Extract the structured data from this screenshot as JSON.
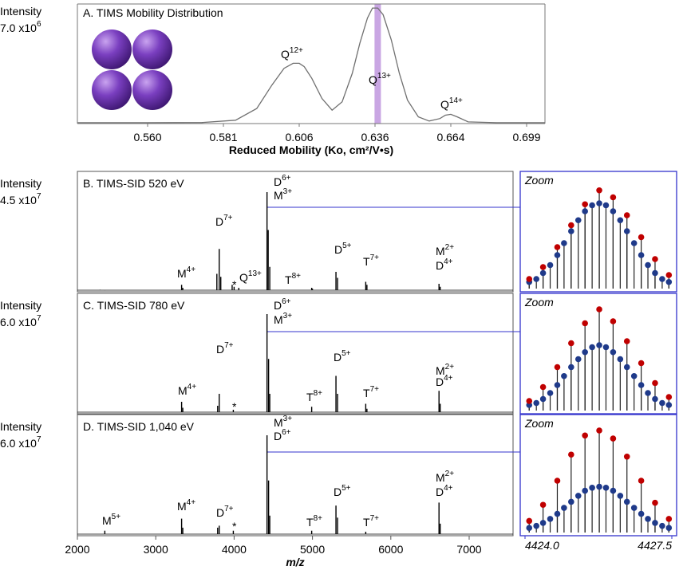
{
  "chart_data": [
    {
      "type": "line",
      "title": "A. TIMS Mobility Distribution",
      "ylabel": "Intensity",
      "ymax_label": {
        "text": "7.0 x10",
        "sup": "6"
      },
      "xlabel": "Reduced Mobility (Ko, cm²/V•s)",
      "color": "#707070",
      "highlight_x": 0.637,
      "highlight_color": "#c9a6e3",
      "x": [
        0.54,
        0.56,
        0.575,
        0.585,
        0.592,
        0.597,
        0.601,
        0.604,
        0.606,
        0.608,
        0.611,
        0.615,
        0.619,
        0.623,
        0.627,
        0.63,
        0.633,
        0.635,
        0.637,
        0.639,
        0.642,
        0.645,
        0.648,
        0.652,
        0.656,
        0.66,
        0.662,
        0.664,
        0.667,
        0.672,
        0.685,
        0.708
      ],
      "values": [
        50000,
        50000,
        60000,
        200000,
        900000,
        2300000,
        3300000,
        3600000,
        3600000,
        3400000,
        2700000,
        1500000,
        800000,
        1300000,
        3000000,
        4800000,
        6300000,
        6900000,
        6900000,
        6500000,
        5000000,
        3000000,
        1400000,
        400000,
        150000,
        300000,
        500000,
        550000,
        400000,
        100000,
        50000,
        50000
      ],
      "xlim": [
        0.54,
        0.708
      ],
      "xticks": [
        {
          "value": 0.56,
          "label": "0.560"
        },
        0.581,
        0.606,
        0.636,
        0.664,
        0.699
      ],
      "ylim": [
        0,
        7000000
      ],
      "annotations": [
        {
          "text": "Q",
          "sup": "12+",
          "color": "#7030a0"
        },
        {
          "text": "Q",
          "sup": "13+",
          "color": "#7030a0"
        },
        {
          "text": "Q",
          "sup": "14+",
          "color": "#7030a0"
        }
      ]
    },
    {
      "type": "stem",
      "title": "B. TIMS-SID 520 eV",
      "ylabel": "Intensity",
      "ymax_label": {
        "text": "4.5 x10",
        "sup": "7"
      },
      "color": "#000000",
      "xlim": [
        2000,
        7560
      ],
      "ylim": [
        0,
        45000000
      ],
      "x": [
        2290,
        2350,
        3330,
        3345,
        3780,
        3810,
        3830,
        3975,
        4000,
        4060,
        4420,
        4435,
        4455,
        4990,
        5000,
        5300,
        5320,
        5680,
        5695,
        6615,
        6630
      ],
      "values": [
        900000,
        675000,
        3150000,
        1800000,
        8100000,
        19350000,
        6750000,
        3150000,
        2250000,
        1800000,
        45000000,
        27900000,
        11250000,
        1800000,
        1350000,
        9000000,
        6300000,
        4500000,
        3150000,
        3600000,
        2250000
      ],
      "annotations": [
        {
          "text": "M",
          "sup": "4+",
          "color": "#c00000"
        },
        {
          "text": "D",
          "sup": "7+",
          "color": "#1f3a8a"
        },
        {
          "text": "*",
          "color": "#000000"
        },
        {
          "text": "Q",
          "sup": "13+",
          "color": "#7030a0"
        },
        {
          "text": "D",
          "sup": "6+",
          "color": "#1f3a8a"
        },
        {
          "text": "M",
          "sup": "3+",
          "color": "#c00000"
        },
        {
          "text": "T",
          "sup": "8+",
          "color": "#22b14c"
        },
        {
          "text": "D",
          "sup": "5+",
          "color": "#1f3a8a"
        },
        {
          "text": "T",
          "sup": "7+",
          "color": "#22b14c"
        },
        {
          "text": "M",
          "sup": "2+",
          "color": "#c00000"
        },
        {
          "text": "D",
          "sup": "4+",
          "color": "#1f3a8a"
        }
      ],
      "zoom": {
        "title": "Zoom",
        "xlim": [
          4424,
          4427.5
        ],
        "ylim": [
          0,
          100
        ],
        "series": [
          {
            "color": "#1f3a8a",
            "x": [
              4424.1,
              4424.27,
              4424.43,
              4424.6,
              4424.77,
              4424.93,
              4425.1,
              4425.27,
              4425.43,
              4425.6,
              4425.77,
              4425.93,
              4426.1,
              4426.27,
              4426.43,
              4426.6,
              4426.77,
              4426.93,
              4427.1,
              4427.27,
              4427.43
            ],
            "values": [
              5,
              8,
              14,
              22,
              32,
              44,
              56,
              67,
              76,
              82,
              84,
              82,
              76,
              67,
              56,
              44,
              32,
              22,
              14,
              8,
              5
            ]
          },
          {
            "color": "#c00000",
            "x": [
              4424.1,
              4424.43,
              4424.77,
              4425.1,
              4425.43,
              4425.77,
              4426.1,
              4426.43,
              4426.77,
              4427.1,
              4427.43
            ],
            "values": [
              8,
              20,
              40,
              62,
              83,
              97,
              90,
              72,
              50,
              28,
              12
            ]
          }
        ]
      }
    },
    {
      "type": "stem",
      "title": "C. TIMS-SID 780 eV",
      "ylabel": "Intensity",
      "ymax_label": {
        "text": "6.0 x10",
        "sup": "7"
      },
      "color": "#000000",
      "xlim": [
        2000,
        7560
      ],
      "ylim": [
        0,
        60000000
      ],
      "x": [
        3330,
        3345,
        3790,
        3810,
        3990,
        4420,
        4440,
        4455,
        4990,
        5300,
        5320,
        5680,
        5695,
        6615,
        6630
      ],
      "values": [
        7200000,
        3600000,
        4800000,
        12000000,
        2400000,
        60000000,
        33000000,
        12000000,
        4200000,
        22800000,
        12000000,
        6000000,
        3000000,
        13800000,
        6000000
      ],
      "annotations": [
        {
          "text": "D",
          "sup": "6+",
          "color": "#1f3a8a"
        },
        {
          "text": "M",
          "sup": "3+",
          "color": "#c00000"
        },
        {
          "text": "D",
          "sup": "7+",
          "color": "#1f3a8a"
        },
        {
          "text": "M",
          "sup": "4+",
          "color": "#c00000"
        },
        {
          "text": "*",
          "color": "#000000"
        },
        {
          "text": "D",
          "sup": "5+",
          "color": "#1f3a8a"
        },
        {
          "text": "T",
          "sup": "8+",
          "color": "#22b14c"
        },
        {
          "text": "T",
          "sup": "7+",
          "color": "#22b14c"
        },
        {
          "text": "M",
          "sup": "2+",
          "color": "#c00000"
        },
        {
          "text": "D",
          "sup": "4+",
          "color": "#1f3a8a"
        }
      ],
      "zoom": {
        "title": "Zoom",
        "xlim": [
          4424,
          4427.5
        ],
        "ylim": [
          0,
          100
        ],
        "series": [
          {
            "color": "#1f3a8a",
            "x": [
              4424.1,
              4424.27,
              4424.43,
              4424.6,
              4424.77,
              4424.93,
              4425.1,
              4425.27,
              4425.43,
              4425.6,
              4425.77,
              4425.93,
              4426.1,
              4426.27,
              4426.43,
              4426.6,
              4426.77,
              4426.93,
              4427.1,
              4427.27,
              4427.43
            ],
            "values": [
              4,
              6,
              10,
              16,
              24,
              33,
              42,
              50,
              57,
              62,
              64,
              62,
              57,
              50,
              42,
              33,
              24,
              16,
              10,
              6,
              4
            ]
          },
          {
            "color": "#c00000",
            "x": [
              4424.1,
              4424.43,
              4424.77,
              4425.1,
              4425.43,
              4425.77,
              4426.1,
              4426.43,
              4426.77,
              4427.1,
              4427.43
            ],
            "values": [
              8,
              22,
              42,
              66,
              86,
              100,
              88,
              68,
              46,
              26,
              12
            ]
          }
        ]
      }
    },
    {
      "type": "stem",
      "title": "D. TIMS-SID 1,040 eV",
      "ylabel": "Intensity",
      "ymax_label": {
        "text": "6.0 x10",
        "sup": "7"
      },
      "color": "#000000",
      "xlim": [
        2000,
        7560
      ],
      "ylim": [
        0,
        60000000
      ],
      "xticks": [
        2000,
        3000,
        4000,
        5000,
        6000,
        7000
      ],
      "xlabel": "m/z",
      "x": [
        2350,
        3330,
        3345,
        3790,
        3810,
        3990,
        4420,
        4440,
        4455,
        4990,
        5300,
        5320,
        5680,
        6615,
        6630
      ],
      "values": [
        3000000,
        10200000,
        4800000,
        4800000,
        6000000,
        3000000,
        60000000,
        33000000,
        12000000,
        3000000,
        18000000,
        10800000,
        2400000,
        19800000,
        7200000
      ],
      "annotations": [
        {
          "text": "M",
          "sup": "3+",
          "color": "#c00000"
        },
        {
          "text": "D",
          "sup": "6+",
          "color": "#1f3a8a"
        },
        {
          "text": "M",
          "sup": "5+",
          "color": "#c00000"
        },
        {
          "text": "M",
          "sup": "4+",
          "color": "#c00000"
        },
        {
          "text": "D",
          "sup": "7+",
          "color": "#1f3a8a"
        },
        {
          "text": "*",
          "color": "#000000"
        },
        {
          "text": "D",
          "sup": "5+",
          "color": "#1f3a8a"
        },
        {
          "text": "T",
          "sup": "8+",
          "color": "#22b14c"
        },
        {
          "text": "T",
          "sup": "7+",
          "color": "#22b14c"
        },
        {
          "text": "M",
          "sup": "2+",
          "color": "#c00000"
        },
        {
          "text": "D",
          "sup": "4+",
          "color": "#1f3a8a"
        }
      ],
      "zoom": {
        "title": "Zoom",
        "xlim": [
          4424,
          4427.5
        ],
        "ylim": [
          0,
          100
        ],
        "xticks": [
          {
            "value": 4424,
            "label": "4424.0"
          },
          {
            "value": 4427.5,
            "label": "4427.5"
          }
        ],
        "series": [
          {
            "color": "#1f3a8a",
            "x": [
              4424.1,
              4424.27,
              4424.43,
              4424.6,
              4424.77,
              4424.93,
              4425.1,
              4425.27,
              4425.43,
              4425.6,
              4425.77,
              4425.93,
              4426.1,
              4426.27,
              4426.43,
              4426.6,
              4426.77,
              4426.93,
              4427.1,
              4427.27,
              4427.43
            ],
            "values": [
              3,
              5,
              8,
              12,
              17,
              23,
              29,
              35,
              40,
              43,
              44,
              43,
              40,
              35,
              29,
              23,
              17,
              12,
              8,
              5,
              3
            ]
          },
          {
            "color": "#c00000",
            "x": [
              4424.1,
              4424.43,
              4424.77,
              4425.1,
              4425.43,
              4425.77,
              4426.1,
              4426.43,
              4426.77,
              4427.1,
              4427.43
            ],
            "values": [
              10,
              26,
              50,
              76,
              95,
              100,
              92,
              74,
              50,
              28,
              12
            ]
          }
        ]
      }
    }
  ]
}
